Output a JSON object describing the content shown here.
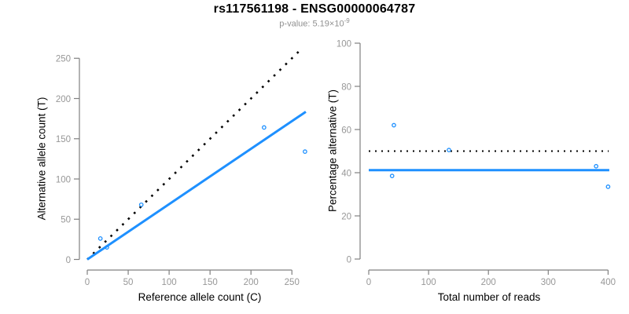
{
  "header": {
    "title": "rs117561198 - ENSG00000064787",
    "pvalue_label": "p-value: 5.19×10",
    "pvalue_exponent": "-9"
  },
  "colors": {
    "accent_blue": "#1E90FF",
    "line_black": "#000000",
    "axis_gray": "#808080",
    "tick_label_gray": "#979797",
    "subtitle_gray": "#909090",
    "title_color": "#000000"
  },
  "chart_data": [
    {
      "id": "allele-count-scatter",
      "type": "scatter",
      "xlabel": "Reference allele count (C)",
      "ylabel": "Alternative allele count (T)",
      "xticks": [
        0,
        50,
        100,
        150,
        200,
        250
      ],
      "yticks": [
        0,
        50,
        100,
        150,
        200,
        250
      ],
      "xlim": [
        0,
        268
      ],
      "ylim": [
        0,
        262
      ],
      "grid": false,
      "legend": null,
      "points": [
        [
          16,
          26
        ],
        [
          24,
          15
        ],
        [
          66,
          68
        ],
        [
          216,
          164
        ],
        [
          266,
          134
        ]
      ],
      "lines": [
        {
          "name": "identity-line",
          "style": "dotted",
          "color": "#000000",
          "from": [
            0,
            0
          ],
          "to": [
            262,
            262
          ],
          "width": 2.6,
          "dash": "2.6 7.8"
        },
        {
          "name": "regression-line",
          "style": "solid",
          "color": "#1E90FF",
          "from": [
            0,
            0
          ],
          "to": [
            267,
            183.5
          ],
          "width": 3
        }
      ]
    },
    {
      "id": "percentage-alternative-scatter",
      "type": "scatter",
      "xlabel": "Total number of reads",
      "ylabel": "Percentage alternative (T)",
      "xticks": [
        0,
        100,
        200,
        300,
        400
      ],
      "yticks": [
        0,
        20,
        40,
        60,
        80,
        100
      ],
      "xlim": [
        0,
        402
      ],
      "ylim": [
        0,
        104
      ],
      "grid": false,
      "legend": null,
      "points": [
        [
          42,
          62
        ],
        [
          39,
          38.5
        ],
        [
          134,
          50.5
        ],
        [
          380,
          43
        ],
        [
          400,
          33.5
        ]
      ],
      "lines": [
        {
          "name": "null-50-percent-line",
          "style": "dotted",
          "color": "#000000",
          "from": [
            0,
            50
          ],
          "to": [
            401,
            50
          ],
          "width": 2,
          "dash": "2 6"
        },
        {
          "name": "mean-percentage-line",
          "style": "solid",
          "color": "#1E90FF",
          "from": [
            0,
            41.2
          ],
          "to": [
            402,
            41.2
          ],
          "width": 3
        }
      ]
    }
  ]
}
